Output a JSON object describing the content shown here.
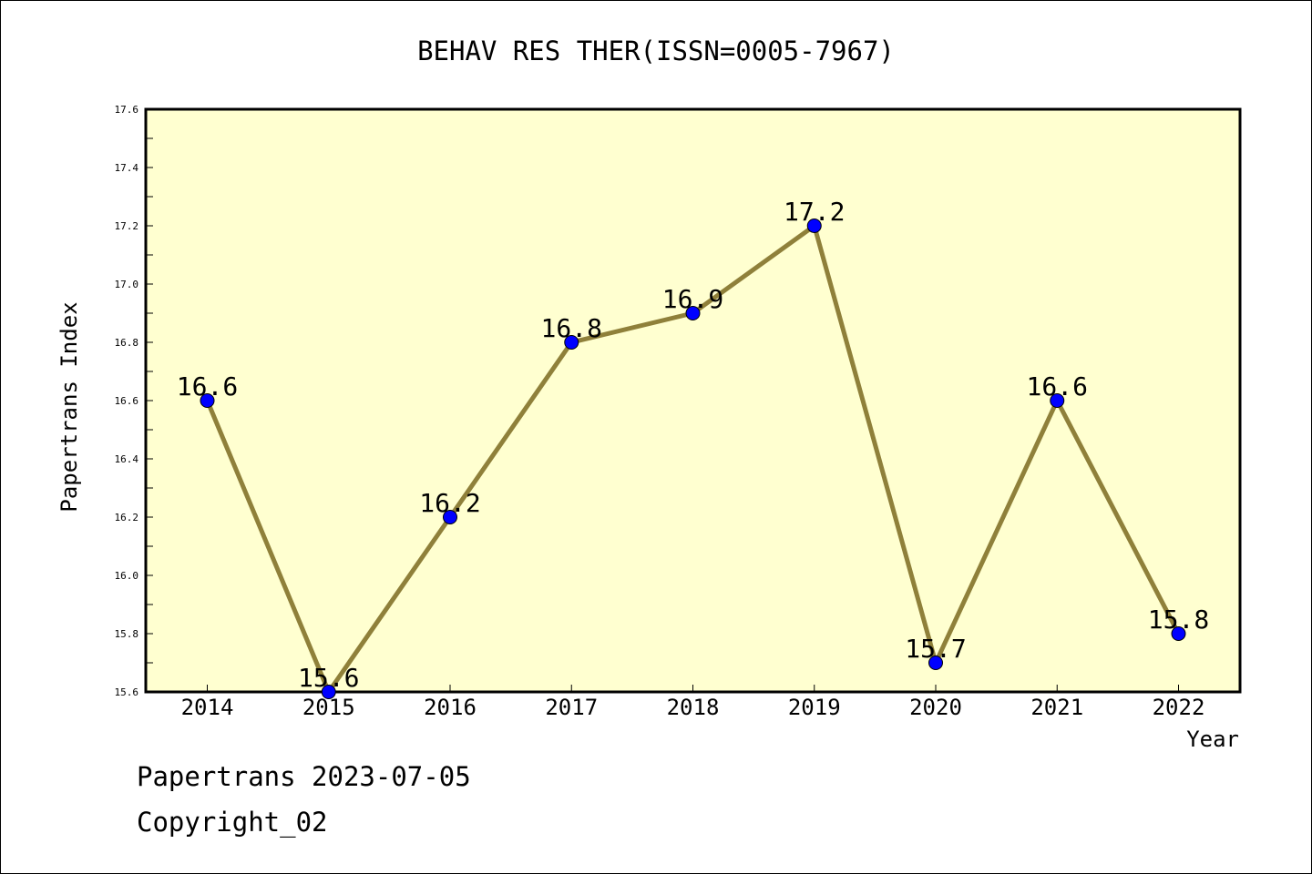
{
  "chart_data": {
    "type": "line",
    "title": "BEHAV RES THER(ISSN=0005-7967)",
    "xlabel": "Year",
    "ylabel": "Papertrans Index",
    "categories": [
      "2014",
      "2015",
      "2016",
      "2017",
      "2018",
      "2019",
      "2020",
      "2021",
      "2022"
    ],
    "values": [
      16.6,
      15.6,
      16.2,
      16.8,
      16.9,
      17.2,
      15.7,
      16.6,
      15.8
    ],
    "value_labels": [
      "16.6",
      "15.6",
      "16.2",
      "16.8",
      "16.9",
      "17.2",
      "15.7",
      "16.6",
      "15.8"
    ],
    "ylim": [
      15.6,
      17.6
    ],
    "yticks": [
      "15.6",
      "15.8",
      "16.0",
      "16.2",
      "16.4",
      "16.6",
      "16.8",
      "17.0",
      "17.2",
      "17.4",
      "17.6"
    ],
    "grid": false,
    "colors": {
      "line": "#8f803a",
      "marker": "#0000ff",
      "plot_background": "#ffffd0"
    }
  },
  "footer": {
    "line1": "Papertrans 2023-07-05",
    "line2": "Copyright_02"
  }
}
